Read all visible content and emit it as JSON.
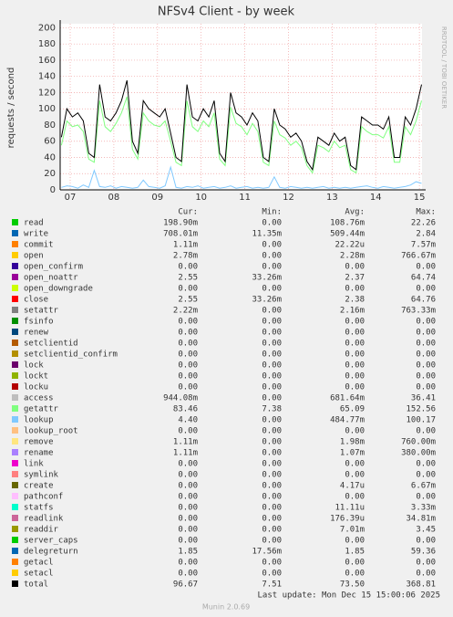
{
  "chart_data": {
    "type": "line",
    "title": "NFSv4 Client - by week",
    "y_label": "requests / second",
    "side_label": "RRDTOOL / TOBI OETIKER",
    "legend_header": [
      "Cur:",
      "Min:",
      "Avg:",
      "Max:"
    ],
    "last_update": "Last update: Mon Dec 15 15:00:06 2025",
    "footer": "Munin 2.0.69",
    "grid": true,
    "xlim": [
      7.27,
      15.56
    ],
    "xticks": [
      {
        "value": 7.5,
        "label": "07"
      },
      {
        "value": 8.5,
        "label": "08"
      },
      {
        "value": 9.5,
        "label": "09"
      },
      {
        "value": 10.5,
        "label": "10"
      },
      {
        "value": 11.5,
        "label": "11"
      },
      {
        "value": 12.5,
        "label": "12"
      },
      {
        "value": 13.5,
        "label": "13"
      },
      {
        "value": 14.5,
        "label": "14"
      },
      {
        "value": 15.5,
        "label": "15"
      }
    ],
    "ylim": [
      0,
      205
    ],
    "yticks": [
      0,
      20,
      40,
      60,
      80,
      100,
      120,
      140,
      160,
      180,
      200
    ],
    "x": [
      7.3,
      7.425,
      7.55,
      7.675,
      7.8,
      7.925,
      8.05,
      8.175,
      8.3,
      8.425,
      8.55,
      8.675,
      8.8,
      8.925,
      9.05,
      9.175,
      9.3,
      9.425,
      9.55,
      9.675,
      9.8,
      9.925,
      10.05,
      10.175,
      10.3,
      10.425,
      10.55,
      10.675,
      10.8,
      10.925,
      11.05,
      11.175,
      11.3,
      11.425,
      11.55,
      11.675,
      11.8,
      11.925,
      12.05,
      12.175,
      12.3,
      12.425,
      12.55,
      12.675,
      12.8,
      12.925,
      13.05,
      13.175,
      13.3,
      13.425,
      13.55,
      13.675,
      13.8,
      13.925,
      14.05,
      14.175,
      14.3,
      14.425,
      14.55,
      14.675,
      14.8,
      14.925,
      15.05,
      15.175,
      15.3,
      15.425,
      15.55
    ],
    "series": [
      {
        "name": "read",
        "color": "#00cc00",
        "cur": "198.90m",
        "min": "0.00",
        "avg": "108.76m",
        "max": "22.26"
      },
      {
        "name": "write",
        "color": "#0066b3",
        "cur": "708.01m",
        "min": "11.35m",
        "avg": "509.44m",
        "max": "2.84"
      },
      {
        "name": "commit",
        "color": "#ff8000",
        "cur": "1.11m",
        "min": "0.00",
        "avg": "22.22u",
        "max": "7.57m"
      },
      {
        "name": "open",
        "color": "#ffcc00",
        "cur": "2.78m",
        "min": "0.00",
        "avg": "2.28m",
        "max": "766.67m"
      },
      {
        "name": "open_confirm",
        "color": "#330099",
        "cur": "0.00",
        "min": "0.00",
        "avg": "0.00",
        "max": "0.00"
      },
      {
        "name": "open_noattr",
        "color": "#990099",
        "cur": "2.55",
        "min": "33.26m",
        "avg": "2.37",
        "max": "64.74"
      },
      {
        "name": "open_downgrade",
        "color": "#ccff00",
        "cur": "0.00",
        "min": "0.00",
        "avg": "0.00",
        "max": "0.00"
      },
      {
        "name": "close",
        "color": "#ff0000",
        "cur": "2.55",
        "min": "33.26m",
        "avg": "2.38",
        "max": "64.76"
      },
      {
        "name": "setattr",
        "color": "#808080",
        "cur": "2.22m",
        "min": "0.00",
        "avg": "2.16m",
        "max": "763.33m"
      },
      {
        "name": "fsinfo",
        "color": "#008f00",
        "cur": "0.00",
        "min": "0.00",
        "avg": "0.00",
        "max": "0.00"
      },
      {
        "name": "renew",
        "color": "#00487d",
        "cur": "0.00",
        "min": "0.00",
        "avg": "0.00",
        "max": "0.00"
      },
      {
        "name": "setclientid",
        "color": "#b35a00",
        "cur": "0.00",
        "min": "0.00",
        "avg": "0.00",
        "max": "0.00"
      },
      {
        "name": "setclientid_confirm",
        "color": "#b38f00",
        "cur": "0.00",
        "min": "0.00",
        "avg": "0.00",
        "max": "0.00"
      },
      {
        "name": "lock",
        "color": "#6b006b",
        "cur": "0.00",
        "min": "0.00",
        "avg": "0.00",
        "max": "0.00"
      },
      {
        "name": "lockt",
        "color": "#8fb300",
        "cur": "0.00",
        "min": "0.00",
        "avg": "0.00",
        "max": "0.00"
      },
      {
        "name": "locku",
        "color": "#b30000",
        "cur": "0.00",
        "min": "0.00",
        "avg": "0.00",
        "max": "0.00"
      },
      {
        "name": "access",
        "color": "#bebebe",
        "cur": "944.08m",
        "min": "0.00",
        "avg": "681.64m",
        "max": "36.41"
      },
      {
        "name": "getattr",
        "color": "#80ff80",
        "cur": "83.46",
        "min": "7.38",
        "avg": "65.09",
        "max": "152.56",
        "values": [
          55,
          85,
          78,
          80,
          72,
          38,
          34,
          110,
          78,
          72,
          82,
          95,
          115,
          50,
          38,
          95,
          85,
          80,
          78,
          85,
          60,
          34,
          30,
          110,
          78,
          72,
          85,
          78,
          95,
          38,
          30,
          102,
          82,
          78,
          68,
          82,
          72,
          34,
          30,
          85,
          68,
          64,
          55,
          60,
          52,
          30,
          21,
          55,
          52,
          47,
          60,
          52,
          55,
          25,
          21,
          78,
          72,
          68,
          68,
          64,
          78,
          34,
          34,
          78,
          68,
          85,
          110
        ]
      },
      {
        "name": "lookup",
        "color": "#80c9ff",
        "cur": "4.40",
        "min": "0.00",
        "avg": "484.77m",
        "max": "100.17",
        "values": [
          3,
          5,
          4,
          2,
          6,
          3,
          24,
          4,
          3,
          5,
          2,
          4,
          3,
          2,
          3,
          12,
          4,
          3,
          2,
          5,
          28,
          3,
          2,
          4,
          3,
          5,
          2,
          3,
          4,
          2,
          3,
          5,
          2,
          3,
          4,
          2,
          3,
          2,
          3,
          16,
          3,
          2,
          4,
          3,
          2,
          3,
          2,
          3,
          4,
          2,
          3,
          2,
          3,
          2,
          3,
          4,
          5,
          3,
          2,
          4,
          3,
          2,
          3,
          4,
          6,
          10,
          8
        ]
      },
      {
        "name": "lookup_root",
        "color": "#ffc080",
        "cur": "0.00",
        "min": "0.00",
        "avg": "0.00",
        "max": "0.00"
      },
      {
        "name": "remove",
        "color": "#ffe680",
        "cur": "1.11m",
        "min": "0.00",
        "avg": "1.98m",
        "max": "760.00m"
      },
      {
        "name": "rename",
        "color": "#aa80ff",
        "cur": "1.11m",
        "min": "0.00",
        "avg": "1.07m",
        "max": "380.00m"
      },
      {
        "name": "link",
        "color": "#ee00cc",
        "cur": "0.00",
        "min": "0.00",
        "avg": "0.00",
        "max": "0.00"
      },
      {
        "name": "symlink",
        "color": "#ff8080",
        "cur": "0.00",
        "min": "0.00",
        "avg": "0.00",
        "max": "0.00"
      },
      {
        "name": "create",
        "color": "#666600",
        "cur": "0.00",
        "min": "0.00",
        "avg": "4.17u",
        "max": "6.67m"
      },
      {
        "name": "pathconf",
        "color": "#ffbfff",
        "cur": "0.00",
        "min": "0.00",
        "avg": "0.00",
        "max": "0.00"
      },
      {
        "name": "statfs",
        "color": "#00ffcc",
        "cur": "0.00",
        "min": "0.00",
        "avg": "11.11u",
        "max": "3.33m"
      },
      {
        "name": "readlink",
        "color": "#cc6699",
        "cur": "0.00",
        "min": "0.00",
        "avg": "176.39u",
        "max": "34.81m"
      },
      {
        "name": "readdir",
        "color": "#999900",
        "cur": "0.00",
        "min": "0.00",
        "avg": "7.01m",
        "max": "3.45"
      },
      {
        "name": "server_caps",
        "color": "#00cc00",
        "cur": "0.00",
        "min": "0.00",
        "avg": "0.00",
        "max": "0.00"
      },
      {
        "name": "delegreturn",
        "color": "#0066b3",
        "cur": "1.85",
        "min": "17.56m",
        "avg": "1.85",
        "max": "59.36"
      },
      {
        "name": "getacl",
        "color": "#ff8000",
        "cur": "0.00",
        "min": "0.00",
        "avg": "0.00",
        "max": "0.00"
      },
      {
        "name": "setacl",
        "color": "#ffcc00",
        "cur": "0.00",
        "min": "0.00",
        "avg": "0.00",
        "max": "0.00"
      },
      {
        "name": "total",
        "color": "#000000",
        "cur": "96.67",
        "min": "7.51",
        "avg": "73.50",
        "max": "368.81",
        "values": [
          65,
          100,
          90,
          95,
          85,
          45,
          40,
          130,
          90,
          85,
          95,
          110,
          135,
          60,
          45,
          110,
          100,
          95,
          90,
          100,
          70,
          40,
          35,
          130,
          90,
          85,
          100,
          90,
          110,
          45,
          35,
          120,
          95,
          90,
          80,
          95,
          85,
          40,
          35,
          100,
          80,
          75,
          65,
          70,
          60,
          35,
          25,
          65,
          60,
          55,
          70,
          60,
          65,
          30,
          25,
          90,
          85,
          80,
          80,
          75,
          90,
          40,
          40,
          90,
          80,
          100,
          130
        ]
      }
    ]
  }
}
